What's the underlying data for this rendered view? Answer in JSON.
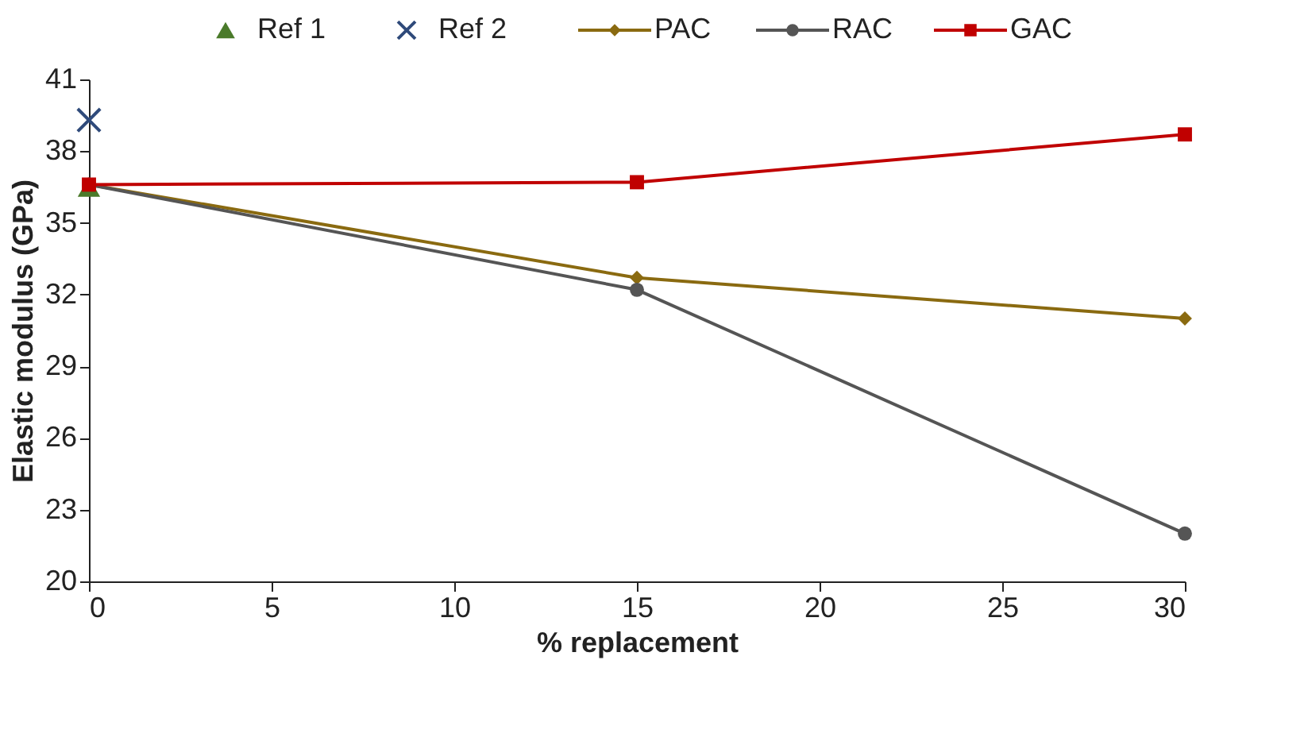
{
  "chart_data": {
    "type": "line",
    "xlabel": "% replacement",
    "ylabel": "Elastic modulus (GPa)",
    "x": [
      0,
      15,
      30
    ],
    "xlim": [
      0,
      30
    ],
    "xticks": [
      0,
      5,
      10,
      15,
      20,
      25,
      30
    ],
    "ylim": [
      20,
      41
    ],
    "yticks": [
      20,
      23,
      26,
      29,
      32,
      35,
      38,
      41
    ],
    "grid": false,
    "legend": "top",
    "series": [
      {
        "name": "Ref 1",
        "type": "scatter",
        "marker": "triangle",
        "color": "#4a7a2a",
        "x": [
          0
        ],
        "values": [
          36.5
        ]
      },
      {
        "name": "Ref 2",
        "type": "scatter",
        "marker": "cross",
        "color": "#2f4a7a",
        "x": [
          0
        ],
        "values": [
          39.3
        ]
      },
      {
        "name": "PAC",
        "marker": "diamond",
        "color": "#8a6a10",
        "values": [
          36.6,
          32.7,
          31.0
        ]
      },
      {
        "name": "RAC",
        "marker": "circle",
        "color": "#555555",
        "values": [
          36.6,
          32.2,
          22.0
        ]
      },
      {
        "name": "GAC",
        "marker": "square",
        "color": "#c00000",
        "values": [
          36.6,
          36.7,
          38.7
        ]
      }
    ]
  }
}
